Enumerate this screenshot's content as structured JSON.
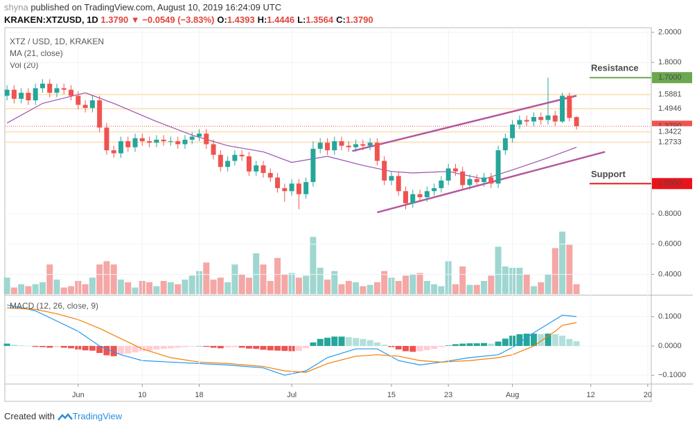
{
  "header": {
    "publisher": "shyna",
    "published": "published on TradingView.com, August 10, 2019 16:24:09 UTC",
    "symbol": "KRAKEN:XTZUSD, 1D",
    "price_line": "1.3790 ▼ −0.0549 (−3.83%)",
    "ohlc": [
      {
        "label": "O:",
        "value": "1.4393"
      },
      {
        "label": "H:",
        "value": "1.4446"
      },
      {
        "label": "L:",
        "value": "1.3564"
      },
      {
        "label": "C:",
        "value": "1.3790"
      }
    ]
  },
  "footer": {
    "text": "Created with",
    "brand": "TradingView"
  },
  "chart_data": [
    {
      "type": "candlestick",
      "title": "XTZ / USD, 1D, KRAKEN",
      "up_color": "#26a69a",
      "down_color": "#ef5350",
      "x": [
        142,
        143,
        144,
        145,
        146,
        147,
        148,
        149,
        150,
        151,
        152,
        153,
        154,
        155,
        156,
        157,
        158,
        159,
        160,
        161,
        162,
        163,
        164,
        165,
        166,
        167,
        168,
        169,
        170,
        171,
        172,
        173,
        174,
        175,
        176,
        177,
        178,
        179,
        180,
        181,
        182,
        183,
        184,
        185,
        186,
        187,
        188,
        189,
        190,
        191,
        192,
        193,
        194,
        195,
        196,
        197,
        198,
        199,
        200,
        201,
        202,
        203,
        204,
        205,
        206,
        207,
        208,
        209,
        210,
        211,
        212,
        213,
        214,
        215,
        216,
        217,
        218,
        219,
        220,
        221,
        222
      ],
      "open": [
        1.58,
        1.62,
        1.56,
        1.6,
        1.55,
        1.63,
        1.66,
        1.6,
        1.63,
        1.62,
        1.58,
        1.52,
        1.5,
        1.55,
        1.37,
        1.22,
        1.2,
        1.28,
        1.24,
        1.3,
        1.28,
        1.27,
        1.29,
        1.28,
        1.28,
        1.26,
        1.29,
        1.31,
        1.33,
        1.26,
        1.19,
        1.11,
        1.15,
        1.19,
        1.18,
        1.08,
        1.12,
        1.07,
        1.04,
        0.97,
        0.95,
        1.0,
        0.93,
        1.01,
        1.23,
        1.27,
        1.22,
        1.28,
        1.25,
        1.24,
        1.26,
        1.25,
        1.27,
        1.15,
        1.02,
        1.05,
        0.95,
        0.87,
        0.93,
        0.91,
        0.95,
        0.97,
        1.02,
        1.1,
        1.08,
        0.99,
        1.03,
        1.01,
        1.04,
        1.0,
        1.22,
        1.3,
        1.39,
        1.42,
        1.41,
        1.44,
        1.42,
        1.45,
        1.41,
        1.58,
        1.4393
      ],
      "high": [
        1.65,
        1.65,
        1.63,
        1.63,
        1.66,
        1.69,
        1.69,
        1.66,
        1.66,
        1.65,
        1.61,
        1.55,
        1.58,
        1.58,
        1.4,
        1.25,
        1.31,
        1.31,
        1.33,
        1.33,
        1.31,
        1.32,
        1.32,
        1.31,
        1.31,
        1.32,
        1.34,
        1.36,
        1.36,
        1.29,
        1.22,
        1.18,
        1.22,
        1.22,
        1.21,
        1.15,
        1.15,
        1.1,
        1.07,
        1.0,
        1.03,
        1.03,
        1.04,
        1.28,
        1.3,
        1.3,
        1.31,
        1.31,
        1.28,
        1.29,
        1.29,
        1.3,
        1.3,
        1.18,
        1.08,
        1.08,
        0.98,
        0.96,
        0.96,
        0.98,
        1.0,
        1.05,
        1.13,
        1.13,
        1.11,
        1.06,
        1.06,
        1.07,
        1.07,
        1.25,
        1.33,
        1.42,
        1.45,
        1.45,
        1.47,
        1.47,
        1.7,
        1.48,
        1.6,
        1.6,
        1.4446
      ],
      "low": [
        1.55,
        1.53,
        1.53,
        1.52,
        1.52,
        1.6,
        1.57,
        1.57,
        1.59,
        1.55,
        1.49,
        1.47,
        1.47,
        1.34,
        1.19,
        1.17,
        1.17,
        1.21,
        1.21,
        1.25,
        1.24,
        1.24,
        1.25,
        1.25,
        1.23,
        1.23,
        1.26,
        1.28,
        1.23,
        1.16,
        1.08,
        1.08,
        1.12,
        1.15,
        1.05,
        1.05,
        1.04,
        1.01,
        0.94,
        0.88,
        0.92,
        0.83,
        0.9,
        0.98,
        1.2,
        1.19,
        1.19,
        1.22,
        1.21,
        1.21,
        1.22,
        1.22,
        1.12,
        0.99,
        0.99,
        0.92,
        0.83,
        0.84,
        0.88,
        0.88,
        0.92,
        0.94,
        0.99,
        1.05,
        0.96,
        0.96,
        0.98,
        0.98,
        0.97,
        0.97,
        1.19,
        1.27,
        1.36,
        1.38,
        1.38,
        1.39,
        1.39,
        1.38,
        1.4,
        1.41,
        1.3564
      ],
      "close": [
        1.62,
        1.56,
        1.6,
        1.55,
        1.63,
        1.66,
        1.6,
        1.63,
        1.62,
        1.58,
        1.52,
        1.5,
        1.55,
        1.37,
        1.22,
        1.2,
        1.28,
        1.24,
        1.3,
        1.28,
        1.27,
        1.29,
        1.28,
        1.28,
        1.26,
        1.29,
        1.31,
        1.33,
        1.26,
        1.19,
        1.11,
        1.15,
        1.19,
        1.18,
        1.08,
        1.12,
        1.07,
        1.04,
        0.97,
        0.95,
        1.0,
        0.93,
        1.01,
        1.23,
        1.27,
        1.22,
        1.28,
        1.25,
        1.24,
        1.26,
        1.25,
        1.27,
        1.15,
        1.02,
        1.05,
        0.95,
        0.87,
        0.93,
        0.91,
        0.95,
        0.97,
        1.02,
        1.1,
        1.08,
        0.99,
        1.03,
        1.01,
        1.04,
        1.0,
        1.22,
        1.3,
        1.39,
        1.42,
        1.41,
        1.44,
        1.42,
        1.45,
        1.41,
        1.58,
        1.4339,
        1.379
      ],
      "series": [
        {
          "name": "MA (21, close)",
          "color": "#9c4fb0",
          "x": [
            142,
            147,
            153,
            157,
            163,
            168,
            173,
            178,
            182,
            187,
            192,
            196,
            199,
            204,
            209,
            213,
            218,
            222
          ],
          "values": [
            1.4,
            1.53,
            1.6,
            1.53,
            1.41,
            1.32,
            1.25,
            1.21,
            1.14,
            1.18,
            1.12,
            1.08,
            1.07,
            1.08,
            1.03,
            1.09,
            1.17,
            1.24
          ]
        }
      ],
      "levels": [
        {
          "value": 1.5881,
          "color": "#fbe3c0"
        },
        {
          "value": 1.4946,
          "color": "#fbe3c0"
        },
        {
          "value": 1.3422,
          "color": "#fbe3c0"
        },
        {
          "value": 1.2733,
          "color": "#fbe3c0"
        }
      ],
      "last_price": {
        "value": 1.379,
        "color": "#ef5350"
      },
      "key_levels": [
        {
          "text": "Resistance",
          "value": 1.7,
          "color": "#6aa84f",
          "text_color": "#d81b60"
        },
        {
          "text": "Support",
          "value": 1.0,
          "color": "#e8141a",
          "text_color": "#1e8f3a"
        }
      ],
      "trend_lines": [
        {
          "x": [
            190.5,
            222
          ],
          "values": [
            1.215,
            1.58
          ],
          "color": "#b5579e"
        },
        {
          "x": [
            194,
            226
          ],
          "values": [
            0.81,
            1.21
          ],
          "color": "#b5579e"
        }
      ],
      "price_labels": [
        {
          "value": 1.7,
          "label": "1.7000",
          "color": "#6aa84f",
          "text_color": "#ffffff"
        },
        {
          "value": 1.5881,
          "label": "1.5881",
          "color": "#ffffff",
          "text_color": "#222222"
        },
        {
          "value": 1.4946,
          "label": "1.4946",
          "color": "#ffffff",
          "text_color": "#222222"
        },
        {
          "value": 1.379,
          "label": "1.3790",
          "color": "#ef5350",
          "text_color": "#ffffff"
        },
        {
          "value": 1.3422,
          "label": "1.3422",
          "color": "#ffffff",
          "text_color": "#222222"
        },
        {
          "value": 1.2733,
          "label": "1.2733",
          "color": "#ffffff",
          "text_color": "#222222"
        },
        {
          "value": 1.0,
          "label": "1.0000",
          "color": "#e8141a",
          "text_color": "#ffffff"
        }
      ],
      "xlim": [
        141.7,
        232.5
      ],
      "ylim": [
        0.27,
        2.03
      ],
      "yticks": [
        {
          "value": 2.0,
          "label": "2.0000"
        },
        {
          "value": 1.8,
          "label": "1.8000"
        },
        {
          "value": 0.8,
          "label": "0.8000"
        },
        {
          "value": 0.6,
          "label": "0.6000"
        },
        {
          "value": 0.4,
          "label": "0.4000"
        }
      ],
      "xticks": [
        {
          "value": 152,
          "label": "Jun"
        },
        {
          "value": 161,
          "label": "10"
        },
        {
          "value": 169,
          "label": "18"
        },
        {
          "value": 182,
          "label": "Jul"
        },
        {
          "value": 196,
          "label": "15"
        },
        {
          "value": 204,
          "label": "23"
        },
        {
          "value": 213,
          "label": "Aug"
        },
        {
          "value": 224,
          "label": "12"
        },
        {
          "value": 232,
          "label": "20"
        }
      ]
    },
    {
      "type": "volume",
      "title": "Vol (20)",
      "up_color": "#9fd6d0",
      "down_color": "#f4a7a5",
      "x": [
        142,
        143,
        144,
        145,
        146,
        147,
        148,
        149,
        150,
        151,
        152,
        153,
        154,
        155,
        156,
        157,
        158,
        159,
        160,
        161,
        162,
        163,
        164,
        165,
        166,
        167,
        168,
        169,
        170,
        171,
        172,
        173,
        174,
        175,
        176,
        177,
        178,
        179,
        180,
        181,
        182,
        183,
        184,
        185,
        186,
        187,
        188,
        189,
        190,
        191,
        192,
        193,
        194,
        195,
        196,
        197,
        198,
        199,
        200,
        201,
        202,
        203,
        204,
        205,
        206,
        207,
        208,
        209,
        210,
        211,
        212,
        213,
        214,
        215,
        216,
        217,
        218,
        219,
        220,
        221,
        222
      ],
      "values": [
        25,
        10,
        15,
        12,
        15,
        18,
        45,
        22,
        10,
        12,
        20,
        15,
        25,
        45,
        50,
        45,
        22,
        18,
        10,
        20,
        18,
        12,
        20,
        18,
        15,
        22,
        28,
        35,
        48,
        22,
        25,
        18,
        45,
        30,
        25,
        62,
        45,
        20,
        55,
        30,
        32,
        25,
        28,
        87,
        40,
        22,
        35,
        15,
        20,
        18,
        12,
        14,
        18,
        35,
        25,
        20,
        28,
        30,
        32,
        20,
        15,
        12,
        50,
        15,
        42,
        14,
        14,
        20,
        28,
        72,
        42,
        40,
        40,
        30,
        12,
        18,
        30,
        70,
        95,
        75,
        15
      ],
      "ylim": [
        0,
        100
      ]
    },
    {
      "type": "macd",
      "title": "MACD (12, 26, close, 9)",
      "x": [
        142,
        143,
        144,
        145,
        146,
        147,
        148,
        149,
        150,
        151,
        152,
        153,
        154,
        155,
        156,
        157,
        158,
        159,
        160,
        161,
        162,
        163,
        164,
        165,
        166,
        167,
        168,
        169,
        170,
        171,
        172,
        173,
        174,
        175,
        176,
        177,
        178,
        179,
        180,
        181,
        182,
        183,
        184,
        185,
        186,
        187,
        188,
        189,
        190,
        191,
        192,
        193,
        194,
        195,
        196,
        197,
        198,
        199,
        200,
        201,
        202,
        203,
        204,
        205,
        206,
        207,
        208,
        209,
        210,
        211,
        212,
        213,
        214,
        215,
        216,
        217,
        218,
        219,
        220,
        221,
        222
      ],
      "histogram": [
        0.008,
        0.004,
        0.002,
        0.0,
        -0.003,
        -0.004,
        -0.006,
        -0.004,
        -0.006,
        -0.008,
        -0.012,
        -0.015,
        -0.016,
        -0.024,
        -0.032,
        -0.035,
        -0.028,
        -0.026,
        -0.022,
        -0.018,
        -0.016,
        -0.012,
        -0.01,
        -0.008,
        -0.006,
        -0.004,
        -0.002,
        0.0,
        -0.003,
        -0.006,
        -0.008,
        -0.005,
        -0.004,
        -0.006,
        -0.009,
        -0.01,
        -0.013,
        -0.015,
        -0.016,
        -0.017,
        -0.018,
        -0.017,
        -0.008,
        0.012,
        0.024,
        0.028,
        0.032,
        0.032,
        0.03,
        0.027,
        0.024,
        0.02,
        0.012,
        0.004,
        -0.004,
        -0.012,
        -0.018,
        -0.02,
        -0.018,
        -0.014,
        -0.01,
        -0.004,
        0.002,
        0.006,
        0.008,
        0.009,
        0.009,
        0.01,
        0.008,
        0.015,
        0.025,
        0.035,
        0.04,
        0.042,
        0.042,
        0.04,
        0.042,
        0.04,
        0.035,
        0.024,
        0.016
      ],
      "hist_colors": {
        "up_rising": "#26a69a",
        "up_falling": "#b2dfdb",
        "down_falling": "#ef5350",
        "down_rising": "#ffcdd2"
      },
      "series": [
        {
          "name": "MACD",
          "color": "#2196f3",
          "x": [
            142,
            146,
            149,
            152,
            155,
            158,
            161,
            165,
            169,
            173,
            178,
            181,
            184,
            187,
            191,
            194,
            197,
            200,
            203,
            207,
            211,
            213,
            216,
            219,
            220,
            222
          ],
          "values": [
            0.14,
            0.12,
            0.085,
            0.05,
            0.0,
            -0.03,
            -0.05,
            -0.055,
            -0.06,
            -0.065,
            -0.075,
            -0.1,
            -0.085,
            -0.04,
            -0.01,
            -0.01,
            -0.05,
            -0.065,
            -0.055,
            -0.04,
            -0.03,
            -0.005,
            0.045,
            0.09,
            0.105,
            0.1
          ]
        },
        {
          "name": "Signal",
          "color": "#f57c00",
          "x": [
            142,
            146,
            149,
            152,
            155,
            158,
            161,
            165,
            169,
            173,
            178,
            181,
            184,
            187,
            191,
            194,
            197,
            200,
            203,
            207,
            211,
            213,
            216,
            219,
            220,
            222
          ],
          "values": [
            0.13,
            0.125,
            0.11,
            0.09,
            0.06,
            0.025,
            -0.01,
            -0.04,
            -0.055,
            -0.06,
            -0.07,
            -0.085,
            -0.09,
            -0.06,
            -0.035,
            -0.03,
            -0.035,
            -0.05,
            -0.055,
            -0.05,
            -0.04,
            -0.03,
            0.0,
            0.05,
            0.07,
            0.08
          ]
        }
      ],
      "ylim": [
        -0.13,
        0.17
      ],
      "yticks": [
        {
          "value": 0.1,
          "label": "0.1000"
        },
        {
          "value": 0,
          "label": "0.0000"
        },
        {
          "value": -0.1,
          "label": "−0.1000"
        }
      ]
    }
  ]
}
